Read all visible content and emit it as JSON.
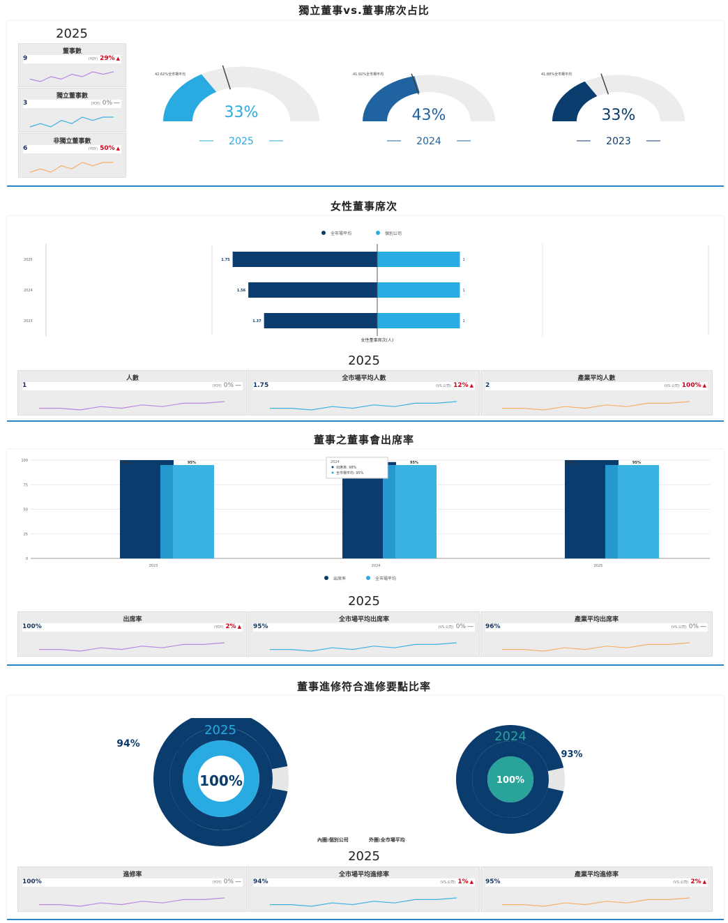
{
  "colors": {
    "dark": "#0b3c6e",
    "mid": "#1f64a0",
    "light": "#29abe2",
    "accent": "#2a84c8",
    "up": "#d0021b",
    "flat": "#666666",
    "purple": "#b886e0",
    "teal": "#5ec3e6",
    "orange": "#f4b06a",
    "grey": "#ececec",
    "needle": "#555555"
  },
  "section1": {
    "title": "獨立董事vs.董事席次占比",
    "year": "2025",
    "cards": [
      {
        "title": "董事數",
        "value": "9",
        "yoy_label": "(YOY)",
        "pct": "29%",
        "trend": "up",
        "spark": [
          5,
          4,
          6,
          5,
          7,
          6,
          8,
          7,
          8
        ]
      },
      {
        "title": "獨立董事數",
        "value": "3",
        "yoy_label": "(YOY)",
        "pct": "0%",
        "trend": "flat",
        "spark": [
          4,
          5,
          4,
          6,
          5,
          7,
          6,
          7,
          7
        ]
      },
      {
        "title": "非獨立董事數",
        "value": "6",
        "yoy_label": "(YOY)",
        "pct": "50%",
        "trend": "up",
        "spark": [
          3,
          4,
          3,
          5,
          4,
          6,
          5,
          6,
          6
        ]
      }
    ],
    "gauges": [
      {
        "year": "2025",
        "value": 33,
        "label": "33%",
        "market": 42.62,
        "market_label": "42.62%全市場平均",
        "color": "#29abe2"
      },
      {
        "year": "2024",
        "value": 43,
        "label": "43%",
        "market": 41.92,
        "market_label": "41.92%全市場平均",
        "color": "#1f64a0"
      },
      {
        "year": "2023",
        "value": 33,
        "label": "33%",
        "market": 41.88,
        "market_label": "41.88%全市場平均",
        "color": "#0b3c6e"
      }
    ]
  },
  "section2": {
    "title": "女性董事席次",
    "legend": [
      "全市場平均",
      "個別公司"
    ],
    "axis_label": "女性董事席次(人)",
    "chart_data": {
      "type": "bar",
      "orientation": "horizontal-diverging",
      "categories": [
        "2025",
        "2024",
        "2023"
      ],
      "series": [
        {
          "name": "全市場平均",
          "values": [
            1.75,
            1.56,
            1.37
          ],
          "labels": [
            "1.75",
            "1.56",
            "1.37"
          ]
        },
        {
          "name": "個別公司",
          "values": [
            1,
            1,
            1
          ],
          "labels": [
            "1",
            "1",
            "1"
          ]
        }
      ]
    },
    "year": "2025",
    "cards": [
      {
        "title": "人數",
        "value": "1",
        "yoy_label": "(YOY)",
        "pct": "0%",
        "trend": "flat",
        "spark": [
          3,
          3,
          2,
          4,
          3,
          5,
          4,
          6,
          6,
          7
        ]
      },
      {
        "title": "全市場平均人數",
        "value": "1.75",
        "yoy_label": "(VS.公司)",
        "pct": "12%",
        "trend": "up",
        "spark": [
          3,
          3,
          2,
          4,
          3,
          5,
          4,
          6,
          6,
          7
        ]
      },
      {
        "title": "產業平均人數",
        "value": "2",
        "yoy_label": "(VS.公司)",
        "pct": "100%",
        "trend": "up",
        "spark": [
          3,
          3,
          2,
          4,
          3,
          5,
          4,
          6,
          6,
          7
        ]
      }
    ]
  },
  "section3": {
    "title": "董事之董事會出席率",
    "legend": [
      "出席率",
      "全市場平均"
    ],
    "tooltip": {
      "title": "2024",
      "line1": "出席率: 98%",
      "line2": "全市場平均: 95%"
    },
    "chart_data": {
      "type": "bar",
      "categories": [
        "2023",
        "2024",
        "2025"
      ],
      "yticks": [
        "100",
        "75",
        "50",
        "25",
        "0"
      ],
      "ylim": [
        0,
        100
      ],
      "series": [
        {
          "name": "出席率",
          "values": [
            100,
            98,
            100
          ],
          "labels": [
            "100%",
            "",
            "100%"
          ]
        },
        {
          "name": "全市場平均",
          "values": [
            95,
            95,
            95
          ],
          "labels": [
            "95%",
            "95%",
            "95%"
          ]
        }
      ]
    },
    "year": "2025",
    "cards": [
      {
        "title": "出席率",
        "value": "100%",
        "yoy_label": "(YOY)",
        "pct": "2%",
        "trend": "up",
        "spark": [
          3,
          3,
          2,
          4,
          3,
          5,
          4,
          6,
          6,
          7
        ]
      },
      {
        "title": "全市場平均出席率",
        "value": "95%",
        "yoy_label": "(VS.公司)",
        "pct": "0%",
        "trend": "flat",
        "spark": [
          3,
          3,
          2,
          4,
          3,
          5,
          4,
          6,
          6,
          7
        ]
      },
      {
        "title": "產業平均出席率",
        "value": "96%",
        "yoy_label": "(VS.公司)",
        "pct": "0%",
        "trend": "flat",
        "spark": [
          3,
          3,
          2,
          4,
          3,
          5,
          4,
          6,
          6,
          7
        ]
      }
    ]
  },
  "section4": {
    "title": "董事進修符合進修要點比率",
    "donuts": [
      {
        "year": "2025",
        "inner": "100%",
        "outer": "94%",
        "inner_value": 100,
        "outer_value": 94,
        "inner_color": "#29abe2",
        "year_color": "#29abe2"
      },
      {
        "year": "2024",
        "inner": "100%",
        "outer": "93%",
        "inner_value": 100,
        "outer_value": 93,
        "inner_color": "#2aa39a",
        "year_color": "#2aa39a"
      }
    ],
    "caption_inner": "內圈:個別公司",
    "caption_outer": "外圈:全市場平均",
    "year": "2025",
    "cards": [
      {
        "title": "進修率",
        "value": "100%",
        "yoy_label": "(YOY)",
        "pct": "0%",
        "trend": "flat",
        "spark": [
          3,
          3,
          2,
          4,
          3,
          5,
          4,
          6,
          6,
          7
        ]
      },
      {
        "title": "全市場平均進修率",
        "value": "94%",
        "yoy_label": "(VS.公司)",
        "pct": "1%",
        "trend": "up",
        "spark": [
          3,
          3,
          2,
          4,
          3,
          5,
          4,
          6,
          6,
          7
        ]
      },
      {
        "title": "產業平均進修率",
        "value": "95%",
        "yoy_label": "(VS.公司)",
        "pct": "2%",
        "trend": "up",
        "spark": [
          3,
          3,
          2,
          4,
          3,
          5,
          4,
          6,
          6,
          7
        ]
      }
    ]
  }
}
